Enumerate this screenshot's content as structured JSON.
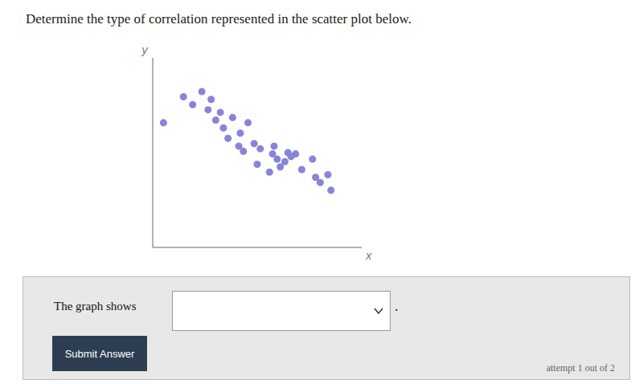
{
  "chart_data": {
    "type": "scatter",
    "title": "Determine the type of correlation represented in the scatter plot below.",
    "x_label": "x",
    "y_label": "y",
    "x": [
      0.05,
      0.7,
      1.0,
      1.3,
      1.5,
      1.6,
      1.75,
      1.9,
      2.0,
      2.15,
      2.3,
      2.5,
      2.55,
      2.65,
      2.8,
      3.0,
      3.1,
      3.2,
      3.5,
      3.6,
      3.65,
      3.75,
      3.85,
      4.0,
      4.1,
      4.2,
      4.35,
      4.55,
      4.9,
      5.0,
      5.15,
      5.4,
      5.5
    ],
    "values": [
      4.5,
      5.5,
      5.2,
      5.7,
      5.0,
      5.4,
      4.6,
      4.9,
      4.3,
      3.9,
      4.7,
      3.6,
      4.1,
      3.4,
      4.5,
      3.7,
      2.9,
      3.5,
      2.6,
      3.3,
      3.6,
      3.1,
      2.8,
      3.0,
      3.35,
      3.2,
      3.3,
      2.7,
      3.1,
      2.4,
      2.2,
      2.5,
      1.9
    ],
    "color": "#8884d8",
    "xlim": [
      -0.3,
      6.5
    ],
    "ylim": [
      -0.3,
      7.0
    ],
    "tick_labels": false,
    "grid": false,
    "annotations": [
      "The graph shows",
      ".",
      "Submit Answer",
      "attempt 1 out of 2"
    ]
  }
}
